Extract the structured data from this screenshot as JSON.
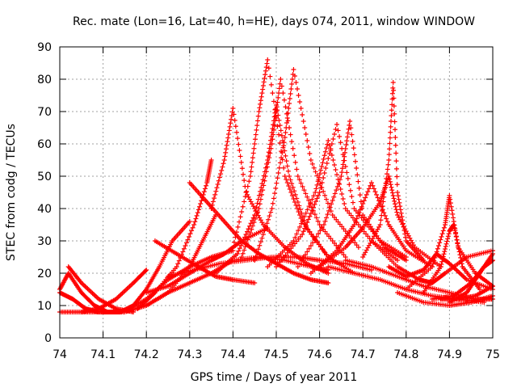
{
  "chart_data": {
    "type": "scatter",
    "title": "Rec. mate (Lon=16, Lat=40, h=HE), days 074, 2011, window WINDOW",
    "xlabel": "GPS time / Days of year 2011",
    "ylabel": "STEC from codg / TECUs",
    "xlim": [
      74,
      75
    ],
    "ylim": [
      0,
      90
    ],
    "x_ticks": [
      "74",
      "74.1",
      "74.2",
      "74.3",
      "74.4",
      "74.5",
      "74.6",
      "74.7",
      "74.8",
      "74.9",
      "75"
    ],
    "y_ticks": [
      "0",
      "10",
      "20",
      "30",
      "40",
      "50",
      "60",
      "70",
      "80",
      "90"
    ],
    "grid": true,
    "marker": "+",
    "color": "#ff0000",
    "series": [
      {
        "x": [
          74.0,
          74.02,
          74.05,
          74.08,
          74.11,
          74.14
        ],
        "y": [
          15,
          20,
          14,
          10,
          8,
          8
        ]
      },
      {
        "x": [
          74.0,
          74.03,
          74.06,
          74.09,
          74.13
        ],
        "y": [
          14,
          12,
          9,
          8,
          8
        ]
      },
      {
        "x": [
          74.02,
          74.05,
          74.09,
          74.13,
          74.17
        ],
        "y": [
          22,
          17,
          12,
          9,
          8
        ]
      },
      {
        "x": [
          74.05,
          74.09,
          74.13,
          74.17,
          74.2
        ],
        "y": [
          8,
          9,
          12,
          17,
          21
        ]
      },
      {
        "x": [
          74.1,
          74.14,
          74.17,
          74.2,
          74.23,
          74.26,
          74.3
        ],
        "y": [
          8,
          8,
          10,
          15,
          22,
          30,
          36
        ]
      },
      {
        "x": [
          74.15,
          74.2,
          74.25,
          74.3,
          74.33,
          74.36
        ],
        "y": [
          8,
          10,
          14,
          22,
          30,
          38
        ]
      },
      {
        "x": [
          74.18,
          74.22,
          74.27,
          74.31,
          74.34,
          74.35
        ],
        "y": [
          9,
          14,
          22,
          35,
          48,
          55
        ]
      },
      {
        "x": [
          74.2,
          74.25,
          74.3,
          74.35,
          74.4,
          74.46,
          74.52,
          74.58,
          74.62
        ],
        "y": [
          10,
          14,
          17,
          20,
          24,
          25,
          24,
          22,
          21
        ]
      },
      {
        "x": [
          74.25,
          74.31,
          74.37,
          74.43,
          74.49,
          74.55,
          74.6,
          74.66,
          74.72
        ],
        "y": [
          19,
          21,
          23,
          24,
          25,
          25,
          24,
          23,
          21
        ]
      },
      {
        "x": [
          74.3,
          74.34,
          74.38,
          74.42,
          74.46,
          74.5,
          74.54,
          74.58,
          74.62
        ],
        "y": [
          48,
          42,
          36,
          30,
          26,
          23,
          20,
          18,
          17
        ]
      },
      {
        "x": [
          74.35,
          74.38,
          74.4,
          74.43,
          74.47,
          74.52,
          74.57,
          74.62
        ],
        "y": [
          40,
          55,
          71,
          45,
          35,
          28,
          23,
          20
        ]
      },
      {
        "x": [
          74.36,
          74.41,
          74.45,
          74.48,
          74.5,
          74.53,
          74.57,
          74.62,
          74.68
        ],
        "y": [
          20,
          26,
          38,
          55,
          72,
          50,
          34,
          25,
          20
        ]
      },
      {
        "x": [
          74.4,
          74.44,
          74.46,
          74.48,
          74.52,
          74.56,
          74.62
        ],
        "y": [
          28,
          50,
          70,
          86,
          50,
          36,
          25
        ]
      },
      {
        "x": [
          74.42,
          74.46,
          74.49,
          74.51,
          74.55,
          74.6,
          74.66
        ],
        "y": [
          25,
          40,
          60,
          80,
          50,
          35,
          25
        ]
      },
      {
        "x": [
          74.45,
          74.49,
          74.52,
          74.54,
          74.58,
          74.63,
          74.69
        ],
        "y": [
          24,
          40,
          62,
          83,
          55,
          38,
          28
        ]
      },
      {
        "x": [
          74.48,
          74.54,
          74.59,
          74.62,
          74.66,
          74.72,
          74.78
        ],
        "y": [
          22,
          30,
          45,
          61,
          40,
          30,
          24
        ]
      },
      {
        "x": [
          74.5,
          74.56,
          74.6,
          74.64,
          74.68,
          74.74,
          74.8
        ],
        "y": [
          22,
          32,
          45,
          66,
          40,
          30,
          25
        ]
      },
      {
        "x": [
          74.55,
          74.61,
          74.65,
          74.67,
          74.7,
          74.75,
          74.8
        ],
        "y": [
          22,
          35,
          50,
          67,
          38,
          28,
          24
        ]
      },
      {
        "x": [
          74.58,
          74.64,
          74.68,
          74.72,
          74.76,
          74.8,
          74.86
        ],
        "y": [
          20,
          27,
          35,
          48,
          35,
          27,
          22
        ]
      },
      {
        "x": [
          74.6,
          74.66,
          74.7,
          74.74,
          74.76,
          74.78,
          74.82,
          74.88
        ],
        "y": [
          22,
          28,
          34,
          42,
          50,
          38,
          28,
          22
        ]
      },
      {
        "x": [
          74.7,
          74.74,
          74.76,
          74.77,
          74.78,
          74.8,
          74.84
        ],
        "y": [
          25,
          35,
          55,
          79,
          45,
          30,
          24
        ]
      },
      {
        "x": [
          74.62,
          74.68,
          74.74,
          74.8,
          74.86,
          74.92,
          74.98
        ],
        "y": [
          22,
          20,
          18,
          15,
          13,
          12,
          11
        ]
      },
      {
        "x": [
          74.66,
          74.72,
          74.78,
          74.84,
          74.9,
          74.96,
          75.0
        ],
        "y": [
          24,
          22,
          19,
          16,
          14,
          12,
          12
        ]
      },
      {
        "x": [
          74.72,
          74.78,
          74.83,
          74.86,
          74.89,
          74.94,
          75.0
        ],
        "y": [
          30,
          22,
          18,
          17,
          20,
          25,
          27
        ]
      },
      {
        "x": [
          74.76,
          74.8,
          74.84,
          74.87,
          74.9,
          74.94,
          75.0
        ],
        "y": [
          22,
          19,
          21,
          26,
          23,
          18,
          15
        ]
      },
      {
        "x": [
          74.8,
          74.86,
          74.89,
          74.9,
          74.92,
          74.96,
          75.0
        ],
        "y": [
          15,
          22,
          35,
          44,
          28,
          20,
          16
        ]
      },
      {
        "x": [
          74.84,
          74.88,
          74.9,
          74.91,
          74.93,
          74.97
        ],
        "y": [
          14,
          22,
          33,
          35,
          22,
          15
        ]
      },
      {
        "x": [
          74.78,
          74.84,
          74.9,
          74.95,
          75.0
        ],
        "y": [
          14,
          11,
          10,
          11,
          13
        ]
      },
      {
        "x": [
          74.86,
          74.91,
          74.95,
          74.98,
          75.0
        ],
        "y": [
          12,
          13,
          17,
          22,
          24
        ]
      },
      {
        "x": [
          74.9,
          74.94,
          74.97,
          75.0
        ],
        "y": [
          11,
          14,
          20,
          26
        ]
      },
      {
        "x": [
          74.88,
          74.92,
          74.96,
          75.0
        ],
        "y": [
          12,
          12,
          13,
          16
        ]
      },
      {
        "x": [
          74.0,
          74.05,
          74.1,
          74.15,
          74.2,
          74.25,
          74.3,
          74.35,
          74.4
        ],
        "y": [
          8,
          8,
          8,
          8,
          12,
          18,
          22,
          25,
          27
        ]
      },
      {
        "x": [
          74.2,
          74.25,
          74.3,
          74.35,
          74.38,
          74.42,
          74.48
        ],
        "y": [
          14,
          16,
          20,
          24,
          26,
          30,
          34
        ]
      },
      {
        "x": [
          74.22,
          74.27,
          74.32,
          74.36,
          74.4,
          74.45
        ],
        "y": [
          30,
          26,
          22,
          19,
          18,
          17
        ]
      }
    ]
  }
}
